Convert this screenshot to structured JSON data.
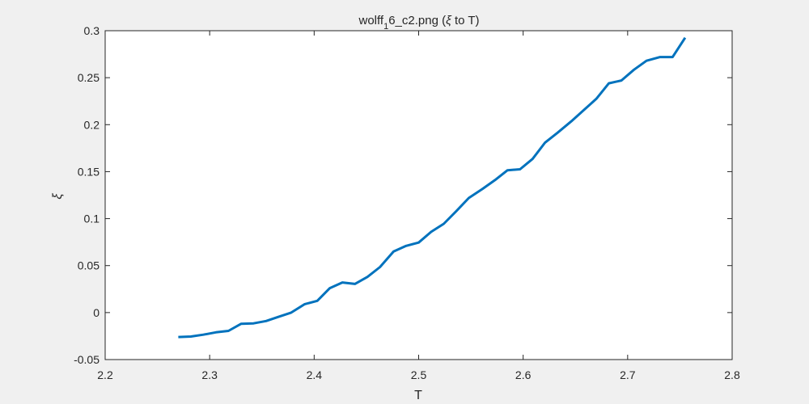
{
  "chart_data": {
    "type": "line",
    "title_main": "wolff",
    "title_sub": "1",
    "title_rest": "6_c2.png (",
    "title_symbol": "ξ",
    "title_end": " to T)",
    "xlabel": "T",
    "ylabel": "ξ",
    "xlim": [
      2.2,
      2.8
    ],
    "ylim": [
      -0.05,
      0.3
    ],
    "xticks": [
      2.2,
      2.3,
      2.4,
      2.5,
      2.6,
      2.7,
      2.8
    ],
    "xtick_labels": [
      "2.2",
      "2.3",
      "2.4",
      "2.5",
      "2.6",
      "2.7",
      "2.8"
    ],
    "yticks": [
      -0.05,
      0,
      0.05,
      0.1,
      0.15,
      0.2,
      0.25,
      0.3
    ],
    "ytick_labels": [
      "-0.05",
      "0",
      "0.05",
      "0.1",
      "0.15",
      "0.2",
      "0.25",
      "0.3"
    ],
    "grid": false,
    "line_color": "#0072bd",
    "series": [
      {
        "x": [
          2.27,
          2.282,
          2.294,
          2.306,
          2.318,
          2.33,
          2.342,
          2.354,
          2.366,
          2.378,
          2.391,
          2.403,
          2.415,
          2.427,
          2.439,
          2.451,
          2.463,
          2.476,
          2.488,
          2.5,
          2.512,
          2.524,
          2.536,
          2.548,
          2.561,
          2.573,
          2.585,
          2.597,
          2.609,
          2.621,
          2.633,
          2.646,
          2.658,
          2.67,
          2.682,
          2.694,
          2.706,
          2.718,
          2.731,
          2.743,
          2.755
        ],
        "values": [
          -0.026,
          -0.0255,
          -0.0235,
          -0.021,
          -0.0195,
          -0.012,
          -0.0115,
          -0.009,
          -0.0045,
          0.0,
          0.009,
          0.0125,
          0.026,
          0.032,
          0.0305,
          0.038,
          0.0485,
          0.065,
          0.071,
          0.0745,
          0.086,
          0.0945,
          0.108,
          0.122,
          0.1315,
          0.141,
          0.1515,
          0.1525,
          0.1635,
          0.181,
          0.1915,
          0.2035,
          0.2155,
          0.2275,
          0.244,
          0.247,
          0.2585,
          0.268,
          0.272,
          0.272,
          0.2925
        ]
      }
    ]
  }
}
